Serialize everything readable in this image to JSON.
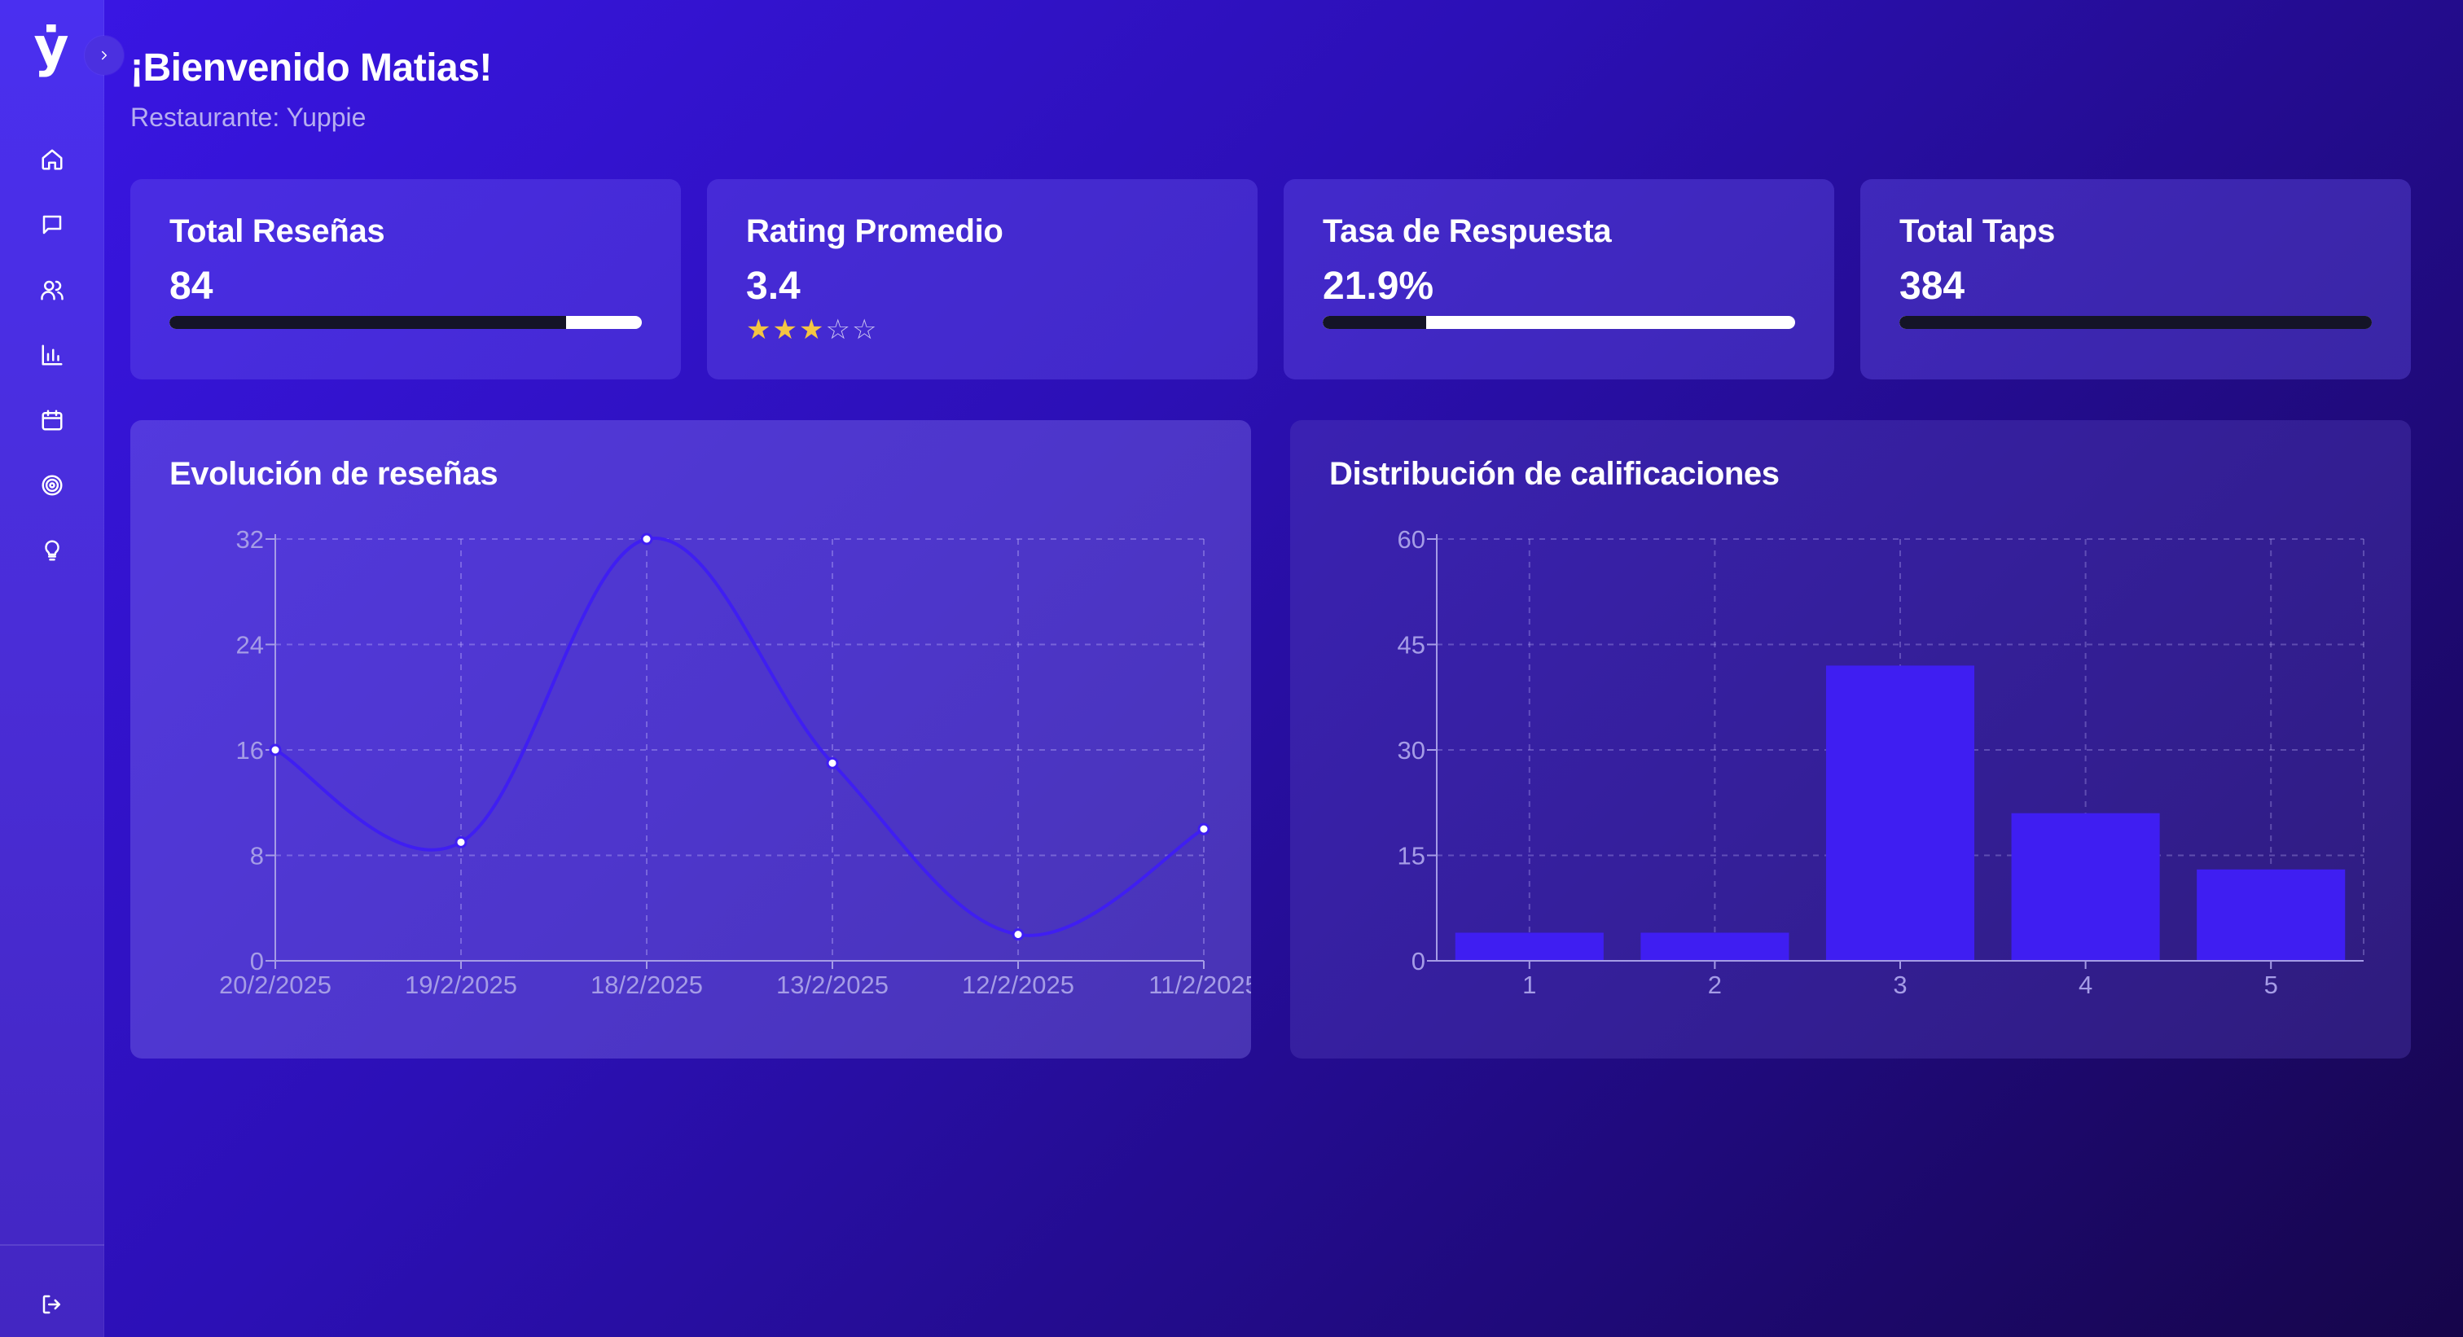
{
  "sidebar": {
    "logo": "ẏ",
    "items": [
      {
        "icon": "home-icon"
      },
      {
        "icon": "message-icon"
      },
      {
        "icon": "users-icon"
      },
      {
        "icon": "bar-chart-icon"
      },
      {
        "icon": "calendar-icon"
      },
      {
        "icon": "target-icon"
      },
      {
        "icon": "lightbulb-icon"
      }
    ],
    "logout_icon": "logout-icon",
    "collapse_icon": "chevron-right-icon"
  },
  "header": {
    "title": "¡Bienvenido Matias!",
    "subtitle": "Restaurante: Yuppie"
  },
  "stats": [
    {
      "label": "Total Reseñas",
      "value": "84",
      "progress": 0.84
    },
    {
      "label": "Rating Promedio",
      "value": "3.4",
      "stars_filled": 3,
      "stars_total": 5
    },
    {
      "label": "Tasa de Respuesta",
      "value": "21.9%",
      "progress": 0.219
    },
    {
      "label": "Total Taps",
      "value": "384",
      "progress": 1.0
    }
  ],
  "colors": {
    "accent": "#3b1ff0",
    "bar": "#3f1ef2",
    "line": "#3f1ef2",
    "star": "#f4c542",
    "progress_fill": "#141427",
    "progress_track": "#ffffff"
  },
  "chart_data": [
    {
      "type": "line",
      "title": "Evolución de reseñas",
      "x": [
        "20/2/2025",
        "19/2/2025",
        "18/2/2025",
        "13/2/2025",
        "12/2/2025",
        "11/2/2025"
      ],
      "values": [
        16,
        9,
        32,
        15,
        2,
        10
      ],
      "yticks": [
        0,
        8,
        16,
        24,
        32
      ],
      "ylim": [
        0,
        32
      ],
      "grid": true
    },
    {
      "type": "bar",
      "title": "Distribución de calificaciones",
      "categories": [
        "1",
        "2",
        "3",
        "4",
        "5"
      ],
      "values": [
        4,
        4,
        42,
        21,
        13
      ],
      "yticks": [
        0,
        15,
        30,
        45,
        60
      ],
      "ylim": [
        0,
        60
      ],
      "grid": true
    }
  ]
}
